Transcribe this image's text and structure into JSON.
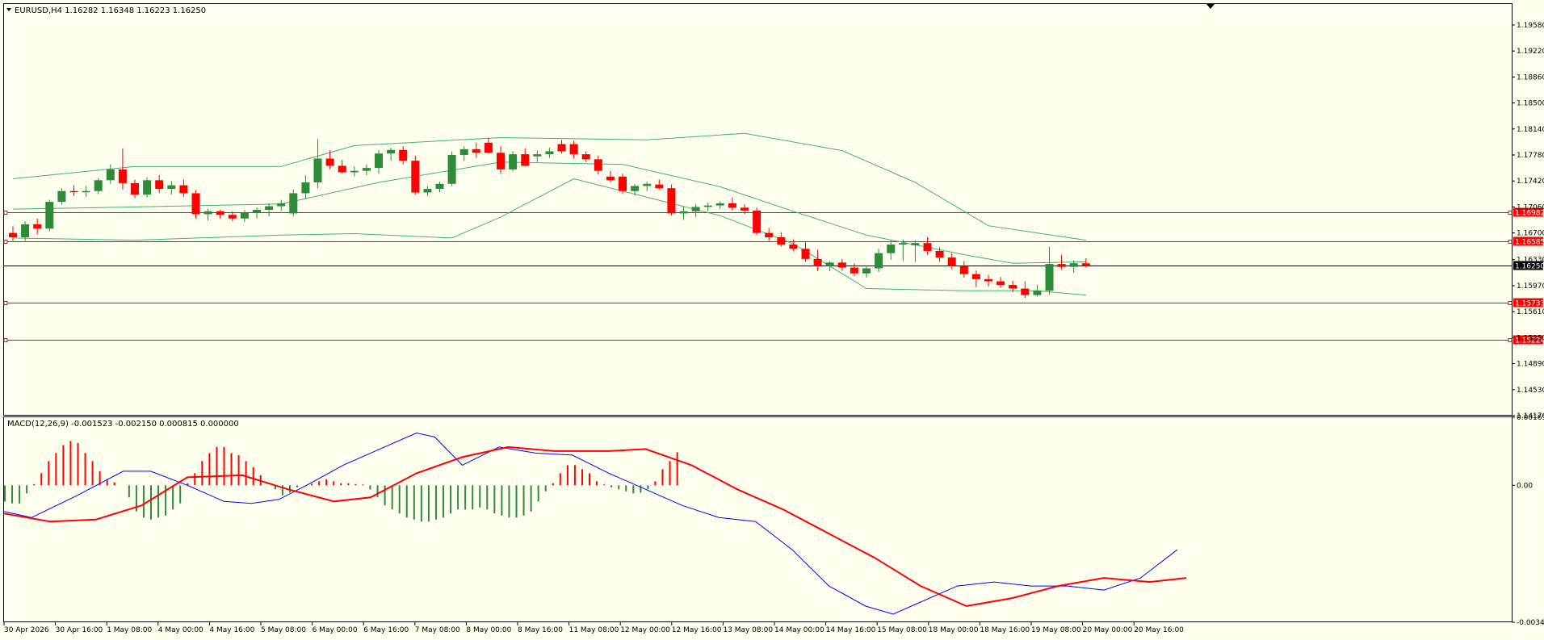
{
  "window": {
    "symbol_header": "EURUSD,H4  1.16282 1.16348 1.16223 1.16250"
  },
  "macd": {
    "header": "MACD(12,26,9) -0.001523 -0.002150 0.000815 0.000000"
  },
  "colors": {
    "background": "#fffff0",
    "bull": "#2e8b3a",
    "bear": "#ff0000",
    "bands": "#3cb371",
    "macd_line": "#0000ff",
    "signal_line": "#ff0000",
    "grid_border": "#000000"
  },
  "chart_data": [
    {
      "type": "candlestick",
      "panel": "price",
      "ylim": [
        1.1417,
        1.1987
      ],
      "price_ticks": [
        "1.19580",
        "1.19220",
        "1.18860",
        "1.18500",
        "1.18140",
        "1.17780",
        "1.17420",
        "1.17060",
        "1.16700",
        "1.16330",
        "1.15970",
        "1.15610",
        "1.15250",
        "1.14890",
        "1.14530",
        "1.14170"
      ],
      "price_tick_values": [
        1.1958,
        1.1922,
        1.1886,
        1.185,
        1.1814,
        1.1778,
        1.1742,
        1.1706,
        1.167,
        1.1633,
        1.1597,
        1.1561,
        1.1525,
        1.1489,
        1.1453,
        1.1417
      ],
      "levels": [
        {
          "label": "1.16982",
          "value": 1.16982,
          "color": "#ff0000"
        },
        {
          "label": "1.16585",
          "value": 1.16585,
          "color": "#ff0000"
        },
        {
          "label": "1.15733",
          "value": 1.15733,
          "color": "#ff0000"
        },
        {
          "label": "1.15224",
          "value": 1.15224,
          "color": "#ff0000"
        }
      ],
      "current_price": {
        "label": "1.16250",
        "value": 1.1625
      },
      "x_labels": [
        "30 Apr 2026",
        "30 Apr 16:00",
        "1 May 08:00",
        "4 May 00:00",
        "4 May 16:00",
        "5 May 08:00",
        "6 May 00:00",
        "6 May 16:00",
        "7 May 08:00",
        "8 May 00:00",
        "8 May 16:00",
        "11 May 08:00",
        "12 May 00:00",
        "12 May 16:00",
        "13 May 08:00",
        "14 May 00:00",
        "14 May 16:00",
        "15 May 08:00",
        "18 May 00:00",
        "18 May 16:00",
        "19 May 08:00",
        "20 May 00:00",
        "20 May 16:00"
      ],
      "candles": [
        [
          1.167,
          1.1679,
          1.1659,
          1.1664
        ],
        [
          1.1664,
          1.1686,
          1.1659,
          1.1682
        ],
        [
          1.1682,
          1.169,
          1.1668,
          1.1676
        ],
        [
          1.1676,
          1.1716,
          1.1672,
          1.1713
        ],
        [
          1.1713,
          1.1732,
          1.1709,
          1.1728
        ],
        [
          1.1728,
          1.1736,
          1.1721,
          1.1727
        ],
        [
          1.1727,
          1.1735,
          1.172,
          1.1728
        ],
        [
          1.1728,
          1.1746,
          1.1724,
          1.1743
        ],
        [
          1.1743,
          1.1765,
          1.1738,
          1.1758
        ],
        [
          1.1758,
          1.1787,
          1.173,
          1.1739
        ],
        [
          1.1739,
          1.1744,
          1.1718,
          1.1723
        ],
        [
          1.1723,
          1.1747,
          1.1719,
          1.1743
        ],
        [
          1.1743,
          1.175,
          1.1725,
          1.1731
        ],
        [
          1.1731,
          1.1742,
          1.1723,
          1.1736
        ],
        [
          1.1736,
          1.1744,
          1.172,
          1.1725
        ],
        [
          1.1725,
          1.1729,
          1.169,
          1.1696
        ],
        [
          1.1696,
          1.1703,
          1.1687,
          1.17
        ],
        [
          1.17,
          1.1702,
          1.169,
          1.1695
        ],
        [
          1.1695,
          1.17,
          1.1686,
          1.169
        ],
        [
          1.169,
          1.1702,
          1.1685,
          1.1698
        ],
        [
          1.1698,
          1.1705,
          1.169,
          1.1702
        ],
        [
          1.1702,
          1.1711,
          1.1693,
          1.1707
        ],
        [
          1.1707,
          1.1716,
          1.17,
          1.1711
        ],
        [
          1.1697,
          1.173,
          1.1693,
          1.1725
        ],
        [
          1.1725,
          1.175,
          1.1718,
          1.174
        ],
        [
          1.174,
          1.18,
          1.1732,
          1.1773
        ],
        [
          1.1773,
          1.1784,
          1.1758,
          1.1763
        ],
        [
          1.1763,
          1.1771,
          1.1752,
          1.1754
        ],
        [
          1.1754,
          1.1762,
          1.1748,
          1.1756
        ],
        [
          1.1756,
          1.1765,
          1.175,
          1.176
        ],
        [
          1.176,
          1.1785,
          1.1752,
          1.178
        ],
        [
          1.178,
          1.1788,
          1.177,
          1.1785
        ],
        [
          1.1785,
          1.179,
          1.1765,
          1.177
        ],
        [
          1.177,
          1.1777,
          1.1723,
          1.1726
        ],
        [
          1.1726,
          1.1735,
          1.1721,
          1.1731
        ],
        [
          1.1731,
          1.1741,
          1.1726,
          1.1738
        ],
        [
          1.1738,
          1.1783,
          1.1735,
          1.1778
        ],
        [
          1.1778,
          1.179,
          1.177,
          1.1786
        ],
        [
          1.1786,
          1.1795,
          1.1774,
          1.1781
        ],
        [
          1.1795,
          1.1802,
          1.178,
          1.1781
        ],
        [
          1.1781,
          1.179,
          1.1752,
          1.1758
        ],
        [
          1.1758,
          1.1783,
          1.1755,
          1.1779
        ],
        [
          1.1779,
          1.1787,
          1.1762,
          1.1763
        ],
        [
          1.1776,
          1.1784,
          1.1768,
          1.1779
        ],
        [
          1.1779,
          1.1788,
          1.1774,
          1.1783
        ],
        [
          1.1793,
          1.1799,
          1.178,
          1.1783
        ],
        [
          1.1793,
          1.1798,
          1.1773,
          1.1779
        ],
        [
          1.1779,
          1.1783,
          1.1768,
          1.1772
        ],
        [
          1.1772,
          1.1777,
          1.1751,
          1.1756
        ],
        [
          1.1748,
          1.1756,
          1.174,
          1.1743
        ],
        [
          1.1748,
          1.1752,
          1.1724,
          1.1728
        ],
        [
          1.1728,
          1.1738,
          1.1722,
          1.1735
        ],
        [
          1.1735,
          1.1741,
          1.1728,
          1.1738
        ],
        [
          1.1737,
          1.1744,
          1.173,
          1.1732
        ],
        [
          1.1732,
          1.1737,
          1.1694,
          1.1697
        ],
        [
          1.1697,
          1.1706,
          1.1688,
          1.17
        ],
        [
          1.17,
          1.171,
          1.1692,
          1.1706
        ],
        [
          1.1706,
          1.1712,
          1.17,
          1.1708
        ],
        [
          1.1708,
          1.1714,
          1.1703,
          1.1711
        ],
        [
          1.1711,
          1.1719,
          1.1701,
          1.1705
        ],
        [
          1.1705,
          1.171,
          1.1696,
          1.1701
        ],
        [
          1.1701,
          1.1705,
          1.1667,
          1.167
        ],
        [
          1.167,
          1.1677,
          1.1659,
          1.1664
        ],
        [
          1.1664,
          1.1671,
          1.1651,
          1.1654
        ],
        [
          1.1654,
          1.1661,
          1.1645,
          1.1648
        ],
        [
          1.1648,
          1.1657,
          1.163,
          1.1634
        ],
        [
          1.1634,
          1.1647,
          1.1617,
          1.1624
        ],
        [
          1.1624,
          1.1631,
          1.1617,
          1.1629
        ],
        [
          1.1629,
          1.1634,
          1.1618,
          1.1622
        ],
        [
          1.1622,
          1.1628,
          1.161,
          1.1614
        ],
        [
          1.1614,
          1.1625,
          1.1608,
          1.1621
        ],
        [
          1.1621,
          1.1648,
          1.1616,
          1.1642
        ],
        [
          1.1642,
          1.166,
          1.1633,
          1.1654
        ],
        [
          1.1654,
          1.1661,
          1.1631,
          1.1656
        ],
        [
          1.1653,
          1.166,
          1.163,
          1.1656
        ],
        [
          1.1656,
          1.1664,
          1.164,
          1.1645
        ],
        [
          1.1645,
          1.165,
          1.163,
          1.1636
        ],
        [
          1.1636,
          1.1642,
          1.162,
          1.1624
        ],
        [
          1.1624,
          1.1631,
          1.1608,
          1.1613
        ],
        [
          1.1613,
          1.1618,
          1.1595,
          1.1606
        ],
        [
          1.1606,
          1.1612,
          1.1596,
          1.1603
        ],
        [
          1.1603,
          1.1609,
          1.1594,
          1.1598
        ],
        [
          1.1598,
          1.1604,
          1.1588,
          1.1593
        ],
        [
          1.1593,
          1.1603,
          1.158,
          1.1584
        ],
        [
          1.1584,
          1.1598,
          1.1582,
          1.159
        ],
        [
          1.159,
          1.1651,
          1.1585,
          1.1627
        ],
        [
          1.1627,
          1.164,
          1.1619,
          1.1623
        ],
        [
          1.1623,
          1.1632,
          1.1615,
          1.1628
        ],
        [
          1.1628,
          1.1635,
          1.1622,
          1.1625
        ]
      ],
      "bollinger": {
        "upper": [
          [
            0,
            1.1745
          ],
          [
            10,
            1.1762
          ],
          [
            22,
            1.1762
          ],
          [
            28,
            1.1791
          ],
          [
            40,
            1.1802
          ],
          [
            52,
            1.1799
          ],
          [
            60,
            1.1808
          ],
          [
            68,
            1.1784
          ],
          [
            74,
            1.174
          ],
          [
            80,
            1.168
          ],
          [
            88,
            1.166
          ]
        ],
        "middle": [
          [
            0,
            1.1703
          ],
          [
            10,
            1.1706
          ],
          [
            22,
            1.171
          ],
          [
            30,
            1.174
          ],
          [
            40,
            1.1768
          ],
          [
            50,
            1.1765
          ],
          [
            58,
            1.1734
          ],
          [
            64,
            1.17
          ],
          [
            70,
            1.1667
          ],
          [
            78,
            1.164
          ],
          [
            82,
            1.1628
          ],
          [
            88,
            1.163
          ]
        ],
        "lower": [
          [
            0,
            1.1663
          ],
          [
            10,
            1.166
          ],
          [
            22,
            1.1667
          ],
          [
            28,
            1.1669
          ],
          [
            36,
            1.1663
          ],
          [
            40,
            1.1692
          ],
          [
            46,
            1.1745
          ],
          [
            58,
            1.1694
          ],
          [
            64,
            1.1655
          ],
          [
            70,
            1.1593
          ],
          [
            78,
            1.159
          ],
          [
            84,
            1.159
          ],
          [
            88,
            1.1584
          ]
        ]
      }
    },
    {
      "type": "macd",
      "panel": "indicator",
      "ylim": [
        -0.0034,
        0.00169
      ],
      "ticks": [
        "0.001693",
        "0.00",
        "-0.00340"
      ],
      "tick_values": [
        0.001693,
        0.0,
        -0.0034
      ],
      "histogram": [
        -0.0004,
        -0.00045,
        -0.00045,
        -0.0002,
        3e-05,
        0.0003,
        0.0006,
        0.0008,
        0.001,
        0.0011,
        0.00105,
        0.0008,
        0.0006,
        0.00035,
        0.00015,
        7e-05,
        0.0,
        -0.0003,
        -0.00065,
        -0.0008,
        -0.00085,
        -0.0008,
        -0.00075,
        -0.0006,
        -0.00045,
        5e-05,
        0.0003,
        0.0006,
        0.0008,
        0.00095,
        0.00095,
        0.0008,
        0.00075,
        0.0006,
        0.00045,
        0.00025,
        0.0,
        -0.0001,
        -0.00025,
        -0.00018,
        -5e-05,
        0.0,
        4e-05,
        0.0001,
        0.00015,
        0.0001,
        5e-05,
        5e-05,
        3e-05,
        2e-05,
        -0.0001,
        -0.0003,
        -0.0005,
        -0.0006,
        -0.0007,
        -0.0008,
        -0.00085,
        -0.0009,
        -0.0009,
        -0.00085,
        -0.0008,
        -0.0007,
        -0.0006,
        -0.0006,
        -0.0006,
        -0.00055,
        -0.0006,
        -0.0007,
        -0.00075,
        -0.0008,
        -0.0008,
        -0.00075,
        -0.00065,
        -0.0004,
        -0.00015,
        5e-05,
        0.0003,
        0.0005,
        0.0005,
        0.0004,
        0.0003,
        0.0001,
        2e-05,
        -5e-05,
        -0.0001,
        -0.00015,
        -0.0002,
        -0.00018,
        -0.0001,
        0.0001,
        0.0004,
        0.0006,
        0.00082
      ],
      "macd_line": [
        [
          0,
          -0.00065
        ],
        [
          3,
          -0.0008
        ],
        [
          8,
          -0.00025
        ],
        [
          13,
          0.00035
        ],
        [
          16,
          0.00035
        ],
        [
          20,
          0.0
        ],
        [
          24,
          -0.0004
        ],
        [
          27,
          -0.00045
        ],
        [
          30,
          -0.00035
        ],
        [
          33,
          0.0
        ],
        [
          37,
          0.0005
        ],
        [
          41,
          0.0009
        ],
        [
          45,
          0.0013
        ],
        [
          47,
          0.0012
        ],
        [
          50,
          0.0005
        ],
        [
          54,
          0.00095
        ],
        [
          58,
          0.0008
        ],
        [
          62,
          0.00075
        ],
        [
          66,
          0.0003
        ],
        [
          70,
          -0.0001
        ],
        [
          74,
          -0.0005
        ],
        [
          78,
          -0.0008
        ],
        [
          82,
          -0.0009
        ],
        [
          86,
          -0.0016
        ],
        [
          90,
          -0.0025
        ],
        [
          94,
          -0.003
        ],
        [
          97,
          -0.0032
        ],
        [
          100,
          -0.0029
        ],
        [
          104,
          -0.0025
        ],
        [
          108,
          -0.0024
        ],
        [
          112,
          -0.0025
        ],
        [
          116,
          -0.0025
        ],
        [
          120,
          -0.0026
        ],
        [
          124,
          -0.0023
        ],
        [
          128,
          -0.0016
        ]
      ],
      "signal_line": [
        [
          0,
          -0.0007
        ],
        [
          5,
          -0.0009
        ],
        [
          10,
          -0.00085
        ],
        [
          15,
          -0.0005
        ],
        [
          20,
          0.0002
        ],
        [
          26,
          0.00025
        ],
        [
          31,
          -0.0001
        ],
        [
          36,
          -0.0004
        ],
        [
          40,
          -0.0003
        ],
        [
          45,
          0.0003
        ],
        [
          50,
          0.0007
        ],
        [
          55,
          0.00095
        ],
        [
          60,
          0.00085
        ],
        [
          66,
          0.00085
        ],
        [
          70,
          0.0009
        ],
        [
          75,
          0.0005
        ],
        [
          80,
          -0.0001
        ],
        [
          85,
          -0.0006
        ],
        [
          90,
          -0.0012
        ],
        [
          95,
          -0.0018
        ],
        [
          100,
          -0.0025
        ],
        [
          105,
          -0.003
        ],
        [
          110,
          -0.0028
        ],
        [
          115,
          -0.0025
        ],
        [
          120,
          -0.0023
        ],
        [
          125,
          -0.0024
        ],
        [
          129,
          -0.0023
        ]
      ]
    }
  ]
}
